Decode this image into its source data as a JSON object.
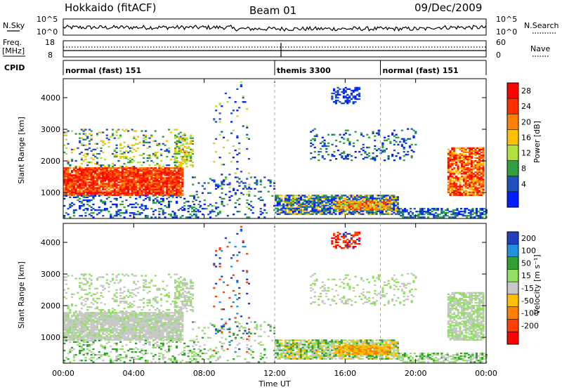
{
  "header": {
    "station": "Hokkaido (fitACF)",
    "beam": "Beam 01",
    "date": "09/Dec/2009"
  },
  "labels": {
    "nsky": "N.Sky",
    "nsearch": "N.Search",
    "freq_line1": "Freq.",
    "freq_line2": "[MHz]",
    "nave": "Nave",
    "cpid": "CPID",
    "time_ut": "Time UT",
    "slant_range": "Slant Range [km]",
    "power_unit": "Power [dB]",
    "velocity_unit": "Velocity [m s⁻¹]"
  },
  "small_axes": {
    "noise_left_ticks": [
      "10^5",
      "10^0"
    ],
    "noise_right_ticks": [
      "10^5",
      "10^0"
    ],
    "freq_left_ticks": [
      "18",
      "8"
    ],
    "freq_right_ticks": [
      "60",
      "0"
    ]
  },
  "cpid": [
    {
      "text": "normal (fast) 151",
      "start": 0
    },
    {
      "text": "themis 3300",
      "start": 12
    },
    {
      "text": "normal (fast) 151",
      "start": 18
    }
  ],
  "colorbars": {
    "power": {
      "labels": [
        "28",
        "24",
        "20",
        "16",
        "12",
        "8",
        "4"
      ],
      "colors": [
        "#ff0000",
        "#ff3000",
        "#ff8000",
        "#ffc000",
        "#b0e040",
        "#30a040",
        "#2050c0",
        "#0020ff"
      ]
    },
    "velocity": {
      "labels": [
        "200",
        "100",
        "50",
        "15",
        "-15",
        "-50",
        "-100",
        "-200"
      ],
      "colors": [
        "#2040c0",
        "#2090e0",
        "#30a030",
        "#90e060",
        "#c8c8c8",
        "#ffc000",
        "#ff8000",
        "#ff4000",
        "#ff0000"
      ]
    }
  },
  "chart_data": [
    {
      "type": "heatmap",
      "ylabel": "Slant Range [km]",
      "xlabel": "Time UT",
      "xlim": [
        0,
        24
      ],
      "ylim": [
        180,
        4600
      ],
      "yticks": [
        1000,
        2000,
        3000,
        4000
      ],
      "xticks": [
        "00:00",
        "04:00",
        "08:00",
        "12:00",
        "16:00",
        "20:00",
        "00:00"
      ],
      "colorbar_label": "Power [dB]"
    },
    {
      "type": "heatmap",
      "ylabel": "Slant Range [km]",
      "xlabel": "Time UT",
      "xlim": [
        0,
        24
      ],
      "ylim": [
        180,
        4600
      ],
      "yticks": [
        1000,
        2000,
        3000,
        4000
      ],
      "xticks": [
        "00:00",
        "04:00",
        "08:00",
        "12:00",
        "16:00",
        "20:00",
        "00:00"
      ],
      "colorbar_label": "Velocity [m s⁻¹]"
    }
  ]
}
